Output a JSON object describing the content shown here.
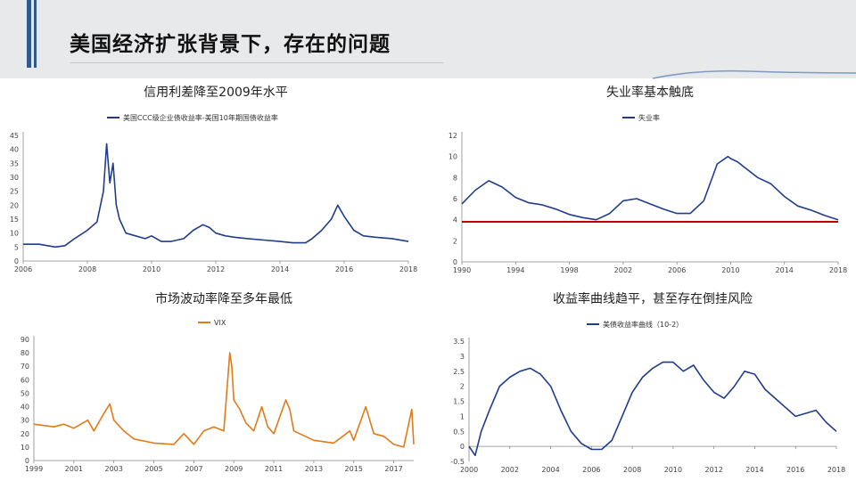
{
  "header": {
    "title": "美国经济扩张背景下，存在的问题"
  },
  "chart_data": [
    {
      "type": "line",
      "title": "信用利差降至2009年水平",
      "series": [
        {
          "name": "美国CCC级企业债收益率-美国10年期国债收益率",
          "color": "#1f3d8a",
          "x": [
            2006,
            2006.5,
            2007,
            2007.3,
            2007.6,
            2008,
            2008.3,
            2008.5,
            2008.6,
            2008.7,
            2008.8,
            2008.9,
            2009,
            2009.2,
            2009.5,
            2009.8,
            2010,
            2010.3,
            2010.6,
            2011,
            2011.3,
            2011.6,
            2011.8,
            2012,
            2012.3,
            2012.6,
            2013,
            2013.5,
            2014,
            2014.4,
            2014.8,
            2015,
            2015.3,
            2015.6,
            2015.8,
            2016,
            2016.3,
            2016.6,
            2017,
            2017.5,
            2018
          ],
          "values": [
            6,
            6,
            5,
            5.5,
            8,
            11,
            14,
            25,
            42,
            28,
            35,
            20,
            15,
            10,
            9,
            8,
            9,
            7,
            7,
            8,
            11,
            13,
            12,
            10,
            9,
            8.5,
            8,
            7.5,
            7,
            6.5,
            6.5,
            8,
            11,
            15,
            20,
            16,
            11,
            9,
            8.5,
            8,
            7
          ]
        }
      ],
      "xticks": [
        "2006",
        "2008",
        "2010",
        "2012",
        "2014",
        "2016",
        "2018"
      ],
      "yticks": [
        "0",
        "5",
        "10",
        "15",
        "20",
        "25",
        "30",
        "35",
        "40",
        "45"
      ],
      "xlim": [
        2006,
        2018
      ],
      "ylim": [
        0,
        45
      ]
    },
    {
      "type": "line",
      "title": "失业率基本触底",
      "series": [
        {
          "name": "失业率",
          "color": "#1f3d8a",
          "x": [
            1990,
            1991,
            1992,
            1993,
            1994,
            1995,
            1996,
            1997,
            1998,
            1999,
            2000,
            2001,
            2002,
            2003,
            2004,
            2005,
            2006,
            2007,
            2008,
            2009,
            2009.8,
            2010,
            2010.5,
            2011,
            2012,
            2013,
            2014,
            2015,
            2016,
            2017,
            2018
          ],
          "values": [
            5.5,
            6.8,
            7.7,
            7.1,
            6.1,
            5.6,
            5.4,
            5,
            4.5,
            4.2,
            4,
            4.6,
            5.8,
            6,
            5.5,
            5,
            4.6,
            4.6,
            5.8,
            9.3,
            10,
            9.8,
            9.5,
            9,
            8,
            7.4,
            6.2,
            5.3,
            4.9,
            4.4,
            4
          ]
        },
        {
          "name": "",
          "color": "#c00000",
          "x": [
            1990,
            2018
          ],
          "values": [
            3.8,
            3.8
          ]
        }
      ],
      "xticks": [
        "1990",
        "1994",
        "1998",
        "2002",
        "2006",
        "2010",
        "2014",
        "2018"
      ],
      "yticks": [
        "0",
        "2",
        "4",
        "6",
        "8",
        "10",
        "12"
      ],
      "xlim": [
        1990,
        2018
      ],
      "ylim": [
        0,
        12
      ]
    },
    {
      "type": "line",
      "title": "市场波动率降至多年最低",
      "series": [
        {
          "name": "VIX",
          "color": "#e07b1a",
          "x": [
            1999,
            1999.5,
            2000,
            2000.5,
            2001,
            2001.7,
            2002,
            2002.5,
            2002.8,
            2003,
            2003.5,
            2004,
            2005,
            2006,
            2006.5,
            2007,
            2007.5,
            2008,
            2008.5,
            2008.8,
            2008.9,
            2009,
            2009.3,
            2009.6,
            2010,
            2010.4,
            2010.7,
            2011,
            2011.6,
            2011.8,
            2012,
            2013,
            2014,
            2014.8,
            2015,
            2015.6,
            2016,
            2016.5,
            2017,
            2017.5,
            2017.9,
            2018
          ],
          "values": [
            27,
            26,
            25,
            27,
            24,
            30,
            22,
            35,
            42,
            30,
            22,
            16,
            13,
            12,
            20,
            12,
            22,
            25,
            22,
            80,
            70,
            45,
            38,
            28,
            22,
            40,
            25,
            20,
            45,
            38,
            22,
            15,
            13,
            22,
            15,
            40,
            20,
            18,
            12,
            10,
            38,
            12
          ]
        }
      ],
      "xticks": [
        "1999",
        "2001",
        "2003",
        "2005",
        "2007",
        "2009",
        "2011",
        "2013",
        "2015",
        "2017"
      ],
      "yticks": [
        "0",
        "10",
        "20",
        "30",
        "40",
        "50",
        "60",
        "70",
        "80",
        "90"
      ],
      "xlim": [
        1999,
        2018
      ],
      "ylim": [
        0,
        90
      ]
    },
    {
      "type": "line",
      "title": "收益率曲线趋平，甚至存在倒挂风险",
      "series": [
        {
          "name": "美债收益率曲线（10-2）",
          "color": "#1f3d8a",
          "x": [
            2000,
            2000.3,
            2000.6,
            2001,
            2001.5,
            2002,
            2002.5,
            2003,
            2003.5,
            2004,
            2004.5,
            2005,
            2005.5,
            2006,
            2006.5,
            2007,
            2007.5,
            2008,
            2008.5,
            2009,
            2009.5,
            2010,
            2010.5,
            2011,
            2011.5,
            2012,
            2012.5,
            2013,
            2013.5,
            2014,
            2014.5,
            2015,
            2015.5,
            2016,
            2016.5,
            2017,
            2017.5,
            2018
          ],
          "values": [
            0,
            -0.3,
            0.5,
            1.2,
            2,
            2.3,
            2.5,
            2.6,
            2.4,
            2,
            1.2,
            0.5,
            0.1,
            -0.1,
            -0.1,
            0.2,
            1,
            1.8,
            2.3,
            2.6,
            2.8,
            2.8,
            2.5,
            2.7,
            2.2,
            1.8,
            1.6,
            2,
            2.5,
            2.4,
            1.9,
            1.6,
            1.3,
            1,
            1.1,
            1.2,
            0.8,
            0.5
          ]
        }
      ],
      "xticks": [
        "2000",
        "2002",
        "2004",
        "2006",
        "2008",
        "2010",
        "2012",
        "2014",
        "2016",
        "2018"
      ],
      "yticks": [
        "-0.5",
        "0",
        "0.5",
        "1",
        "1.5",
        "2",
        "2.5",
        "3",
        "3.5"
      ],
      "xlim": [
        2000,
        2018
      ],
      "ylim": [
        -0.5,
        3.5
      ]
    }
  ]
}
